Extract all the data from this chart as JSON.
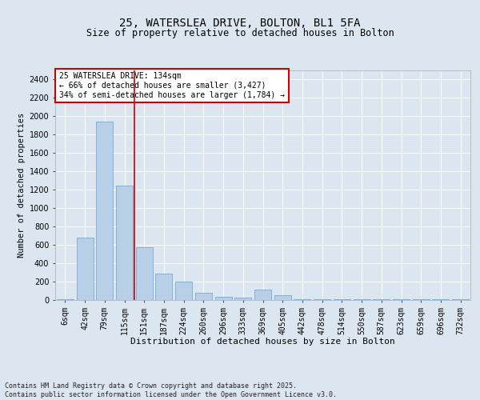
{
  "title1": "25, WATERSLEA DRIVE, BOLTON, BL1 5FA",
  "title2": "Size of property relative to detached houses in Bolton",
  "xlabel": "Distribution of detached houses by size in Bolton",
  "ylabel": "Number of detached properties",
  "categories": [
    "6sqm",
    "42sqm",
    "79sqm",
    "115sqm",
    "151sqm",
    "187sqm",
    "224sqm",
    "260sqm",
    "296sqm",
    "333sqm",
    "369sqm",
    "405sqm",
    "442sqm",
    "478sqm",
    "514sqm",
    "550sqm",
    "587sqm",
    "623sqm",
    "659sqm",
    "696sqm",
    "732sqm"
  ],
  "values": [
    10,
    680,
    1940,
    1240,
    570,
    290,
    200,
    75,
    35,
    30,
    110,
    50,
    10,
    10,
    10,
    10,
    10,
    10,
    10,
    10,
    10
  ],
  "bar_color": "#b8cfe8",
  "bar_edgecolor": "#6a9fcb",
  "vline_x": 3.5,
  "vline_color": "#cc0000",
  "annotation_text": "25 WATERSLEA DRIVE: 134sqm\n← 66% of detached houses are smaller (3,427)\n34% of semi-detached houses are larger (1,784) →",
  "annotation_box_edgecolor": "#cc0000",
  "annotation_box_facecolor": "#ffffff",
  "ylim": [
    0,
    2500
  ],
  "yticks": [
    0,
    200,
    400,
    600,
    800,
    1000,
    1200,
    1400,
    1600,
    1800,
    2000,
    2200,
    2400
  ],
  "bg_color": "#dce6f1",
  "plot_bg_color": "#dce6f1",
  "grid_color": "#ffffff",
  "footer": "Contains HM Land Registry data © Crown copyright and database right 2025.\nContains public sector information licensed under the Open Government Licence v3.0.",
  "title1_fontsize": 10,
  "title2_fontsize": 8.5,
  "xlabel_fontsize": 8,
  "ylabel_fontsize": 7.5,
  "tick_fontsize": 7,
  "annot_fontsize": 7,
  "footer_fontsize": 6
}
